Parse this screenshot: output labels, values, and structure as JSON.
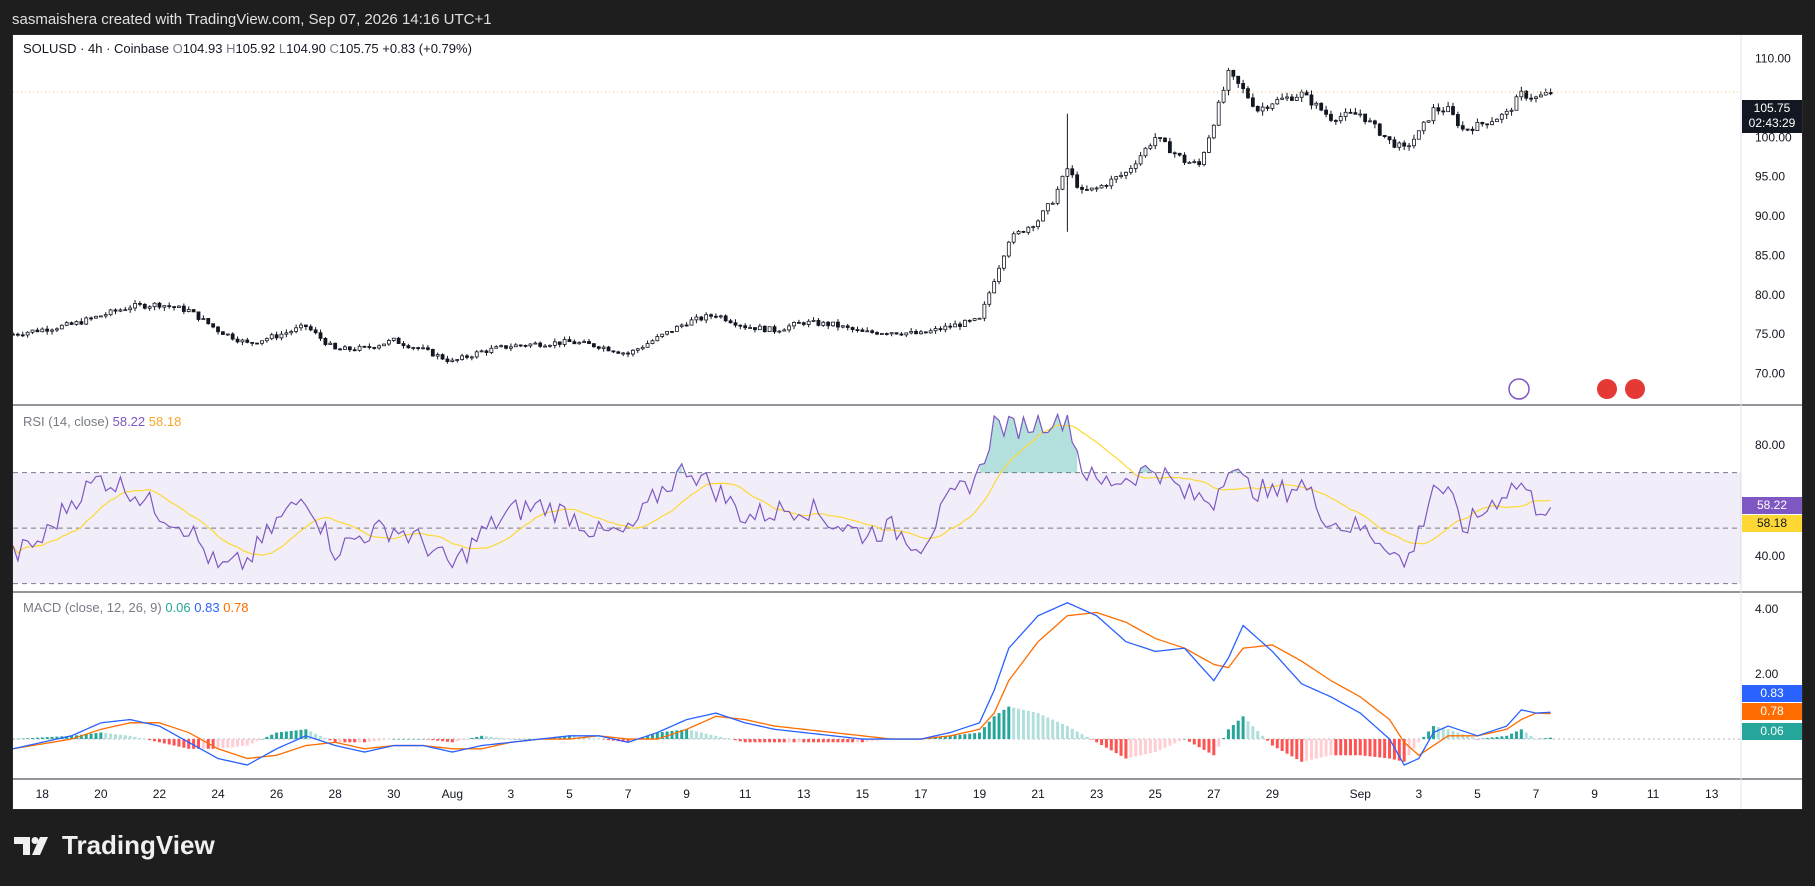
{
  "header": {
    "attribution": "sasmaishera created with TradingView.com, Sep 07, 2026 14:16 UTC+1"
  },
  "legend": {
    "symbol": "SOLUSD · 4h · Coinbase",
    "open_label": "O",
    "open": "104.93",
    "high_label": "H",
    "high": "105.92",
    "low_label": "L",
    "low": "104.90",
    "close_label": "C",
    "close": "105.75",
    "change": "+0.83 (+0.79%)"
  },
  "rsi_legend": {
    "title": "RSI (14, close)",
    "rsi": "58.22",
    "ma": "58.18"
  },
  "macd_legend": {
    "title": "MACD (close, 12, 26, 9)",
    "hist": "0.06",
    "macd": "0.83",
    "signal": "0.78"
  },
  "price_tag": {
    "value": "105.75",
    "countdown": "02:43:29"
  },
  "rsi_tags": {
    "rsi": "58.22",
    "ma": "58.18"
  },
  "macd_tags": {
    "macd": "0.83",
    "signal": "0.78",
    "hist": "0.06"
  },
  "footer": {
    "brand": "TradingView"
  },
  "colors": {
    "up": "#131722",
    "down": "#131722",
    "rsi_line": "#7e57c2",
    "rsi_ma": "#fdd835",
    "macd_line": "#2962ff",
    "signal_line": "#ff6d00",
    "hist_up_strong": "#26a69a",
    "hist_up_weak": "#b2dfdb",
    "hist_down_strong": "#ff5252",
    "hist_down_weak": "#ffcdd2"
  },
  "chart_data": {
    "type": "candlestick",
    "interval": "4h",
    "price_axis": {
      "ticks": [
        "110.00",
        "100.00",
        "95.00",
        "90.00",
        "85.00",
        "80.00",
        "75.00",
        "70.00"
      ],
      "ylim": [
        66,
        113
      ]
    },
    "rsi_axis": {
      "ticks": [
        "80.00",
        "40.00"
      ],
      "ylim": [
        27,
        94
      ],
      "bands": [
        30,
        50,
        70
      ]
    },
    "macd_axis": {
      "ticks": [
        "4.00",
        "2.00"
      ],
      "ylim": [
        -1.2,
        4.5
      ]
    },
    "x_tick_labels": [
      "18",
      "20",
      "22",
      "24",
      "26",
      "28",
      "30",
      "Aug",
      "3",
      "5",
      "7",
      "9",
      "11",
      "13",
      "15",
      "17",
      "19",
      "21",
      "23",
      "25",
      "27",
      "29",
      "Sep",
      "3",
      "5",
      "7",
      "9",
      "11",
      "13"
    ],
    "x_tick_dates": [
      "07-18",
      "07-20",
      "07-22",
      "07-24",
      "07-26",
      "07-28",
      "07-30",
      "08-01",
      "08-03",
      "08-05",
      "08-07",
      "08-09",
      "08-11",
      "08-13",
      "08-15",
      "08-17",
      "08-19",
      "08-21",
      "08-23",
      "08-25",
      "08-27",
      "08-29",
      "09-01",
      "09-03",
      "09-05",
      "09-07",
      "09-09",
      "09-11",
      "09-13"
    ],
    "x_range": [
      "07-17",
      "09-14"
    ],
    "close_anchors": [
      [
        "07-17",
        75.0
      ],
      [
        "07-19",
        76.2
      ],
      [
        "07-21",
        78.5
      ],
      [
        "07-22",
        78.8
      ],
      [
        "07-23",
        78.0
      ],
      [
        "07-24",
        75.5
      ],
      [
        "07-25",
        73.8
      ],
      [
        "07-26",
        74.8
      ],
      [
        "07-27",
        76.0
      ],
      [
        "07-28",
        73.0
      ],
      [
        "07-29",
        73.2
      ],
      [
        "07-30",
        74.2
      ],
      [
        "07-31",
        73.0
      ],
      [
        "08-01",
        71.5
      ],
      [
        "08-02",
        72.8
      ],
      [
        "08-03",
        73.5
      ],
      [
        "08-04",
        73.8
      ],
      [
        "08-05",
        74.0
      ],
      [
        "08-06",
        73.5
      ],
      [
        "08-07",
        72.5
      ],
      [
        "08-08",
        74.5
      ],
      [
        "08-09",
        76.5
      ],
      [
        "08-10",
        77.5
      ],
      [
        "08-11",
        76.0
      ],
      [
        "08-12",
        75.5
      ],
      [
        "08-13",
        76.5
      ],
      [
        "08-14",
        76.2
      ],
      [
        "08-15",
        75.2
      ],
      [
        "08-16",
        75.3
      ],
      [
        "08-17",
        75.0
      ],
      [
        "08-18",
        76.0
      ],
      [
        "08-19",
        76.8
      ],
      [
        "08-19T12",
        82.0
      ],
      [
        "08-20",
        87.0
      ],
      [
        "08-21",
        89.5
      ],
      [
        "08-21T12",
        92.0
      ],
      [
        "08-22",
        96.0
      ],
      [
        "08-22T12",
        93.0
      ],
      [
        "08-23",
        93.5
      ],
      [
        "08-24",
        95.5
      ],
      [
        "08-25",
        100.0
      ],
      [
        "08-26",
        97.0
      ],
      [
        "08-26T12",
        96.5
      ],
      [
        "08-27",
        102.0
      ],
      [
        "08-27T12",
        108.0
      ],
      [
        "08-28",
        106.0
      ],
      [
        "08-28T12",
        103.5
      ],
      [
        "08-29",
        104.5
      ],
      [
        "08-30",
        105.5
      ],
      [
        "08-31",
        102.5
      ],
      [
        "09-01",
        103.0
      ],
      [
        "09-02",
        99.5
      ],
      [
        "09-02T12",
        98.5
      ],
      [
        "09-03",
        100.5
      ],
      [
        "09-03T12",
        103.5
      ],
      [
        "09-04",
        103.5
      ],
      [
        "09-04T12",
        101.0
      ],
      [
        "09-05",
        101.5
      ],
      [
        "09-06",
        103.0
      ],
      [
        "09-06T12",
        105.5
      ],
      [
        "09-07",
        105.0
      ],
      [
        "09-07T14",
        105.75
      ]
    ],
    "notable": {
      "spike_high": {
        "date": "08-22",
        "value": 103.0
      },
      "spike_low": {
        "date": "08-22",
        "value": 88.0
      },
      "period_high": 110.8,
      "period_low": 70.6
    },
    "rsi_anchors": [
      [
        "07-17",
        40
      ],
      [
        "07-18",
        46
      ],
      [
        "07-19",
        60
      ],
      [
        "07-20",
        68
      ],
      [
        "07-21",
        64
      ],
      [
        "07-22",
        56
      ],
      [
        "07-23",
        50
      ],
      [
        "07-24",
        35
      ],
      [
        "07-25",
        38
      ],
      [
        "07-26",
        52
      ],
      [
        "07-27",
        62
      ],
      [
        "07-28",
        42
      ],
      [
        "07-29",
        48
      ],
      [
        "07-30",
        50
      ],
      [
        "07-31",
        45
      ],
      [
        "08-01",
        36
      ],
      [
        "08-02",
        48
      ],
      [
        "08-03",
        56
      ],
      [
        "08-04",
        58
      ],
      [
        "08-05",
        55
      ],
      [
        "08-06",
        48
      ],
      [
        "08-07",
        48
      ],
      [
        "08-08",
        62
      ],
      [
        "08-09",
        72
      ],
      [
        "08-10",
        64
      ],
      [
        "08-11",
        54
      ],
      [
        "08-12",
        56
      ],
      [
        "08-13",
        58
      ],
      [
        "08-14",
        52
      ],
      [
        "08-15",
        48
      ],
      [
        "08-16",
        50
      ],
      [
        "08-17",
        44
      ],
      [
        "08-18",
        60
      ],
      [
        "08-19",
        70
      ],
      [
        "08-19T12",
        88
      ],
      [
        "08-20",
        86
      ],
      [
        "08-21",
        88
      ],
      [
        "08-22",
        90
      ],
      [
        "08-22T12",
        72
      ],
      [
        "08-23",
        66
      ],
      [
        "08-24",
        68
      ],
      [
        "08-25",
        72
      ],
      [
        "08-26",
        62
      ],
      [
        "08-27",
        60
      ],
      [
        "08-27T12",
        74
      ],
      [
        "08-28",
        66
      ],
      [
        "08-29",
        62
      ],
      [
        "08-30",
        66
      ],
      [
        "08-31",
        52
      ],
      [
        "09-01",
        50
      ],
      [
        "09-02",
        44
      ],
      [
        "09-02T12",
        36
      ],
      [
        "09-03",
        48
      ],
      [
        "09-03T12",
        66
      ],
      [
        "09-04",
        62
      ],
      [
        "09-04T12",
        50
      ],
      [
        "09-05",
        54
      ],
      [
        "09-06",
        64
      ],
      [
        "09-06T12",
        66
      ],
      [
        "09-07",
        58
      ],
      [
        "09-07T14",
        58.22
      ]
    ],
    "macd_anchors": [
      [
        "07-17",
        -0.3,
        -0.3
      ],
      [
        "07-19",
        0.1,
        0.0
      ],
      [
        "07-20",
        0.5,
        0.3
      ],
      [
        "07-21",
        0.6,
        0.5
      ],
      [
        "07-22",
        0.4,
        0.5
      ],
      [
        "07-23",
        -0.1,
        0.2
      ],
      [
        "07-24",
        -0.6,
        -0.3
      ],
      [
        "07-25",
        -0.8,
        -0.6
      ],
      [
        "07-26",
        -0.3,
        -0.5
      ],
      [
        "07-27",
        0.1,
        -0.2
      ],
      [
        "07-28",
        -0.2,
        -0.1
      ],
      [
        "07-29",
        -0.4,
        -0.3
      ],
      [
        "07-30",
        -0.2,
        -0.2
      ],
      [
        "07-31",
        -0.2,
        -0.2
      ],
      [
        "08-01",
        -0.4,
        -0.3
      ],
      [
        "08-02",
        -0.2,
        -0.3
      ],
      [
        "08-03",
        -0.1,
        -0.1
      ],
      [
        "08-04",
        0.0,
        0.0
      ],
      [
        "08-05",
        0.1,
        0.0
      ],
      [
        "08-06",
        0.1,
        0.1
      ],
      [
        "08-07",
        -0.1,
        0.0
      ],
      [
        "08-08",
        0.2,
        0.0
      ],
      [
        "08-09",
        0.6,
        0.3
      ],
      [
        "08-10",
        0.8,
        0.7
      ],
      [
        "08-11",
        0.5,
        0.6
      ],
      [
        "08-12",
        0.3,
        0.4
      ],
      [
        "08-13",
        0.2,
        0.3
      ],
      [
        "08-14",
        0.1,
        0.2
      ],
      [
        "08-15",
        0.0,
        0.1
      ],
      [
        "08-16",
        0.0,
        0.0
      ],
      [
        "08-17",
        0.0,
        0.0
      ],
      [
        "08-18",
        0.2,
        0.1
      ],
      [
        "08-19",
        0.5,
        0.3
      ],
      [
        "08-19T12",
        1.5,
        0.8
      ],
      [
        "08-20",
        2.8,
        1.8
      ],
      [
        "08-21",
        3.8,
        3.0
      ],
      [
        "08-22",
        4.2,
        3.8
      ],
      [
        "08-23",
        3.8,
        3.9
      ],
      [
        "08-24",
        3.0,
        3.6
      ],
      [
        "08-25",
        2.7,
        3.1
      ],
      [
        "08-26",
        2.8,
        2.8
      ],
      [
        "08-27",
        1.8,
        2.3
      ],
      [
        "08-27T12",
        2.5,
        2.2
      ],
      [
        "08-28",
        3.5,
        2.8
      ],
      [
        "08-29",
        2.7,
        2.9
      ],
      [
        "08-30",
        1.7,
        2.4
      ],
      [
        "08-31",
        1.3,
        1.8
      ],
      [
        "09-01",
        0.8,
        1.3
      ],
      [
        "09-02",
        0.0,
        0.6
      ],
      [
        "09-02T12",
        -0.8,
        -0.1
      ],
      [
        "09-03",
        -0.6,
        -0.5
      ],
      [
        "09-03T12",
        0.2,
        -0.2
      ],
      [
        "09-04",
        0.4,
        0.1
      ],
      [
        "09-05",
        0.1,
        0.1
      ],
      [
        "09-06",
        0.4,
        0.3
      ],
      [
        "09-06T12",
        0.9,
        0.6
      ],
      [
        "09-07",
        0.8,
        0.8
      ],
      [
        "09-07T14",
        0.83,
        0.78
      ]
    ]
  }
}
